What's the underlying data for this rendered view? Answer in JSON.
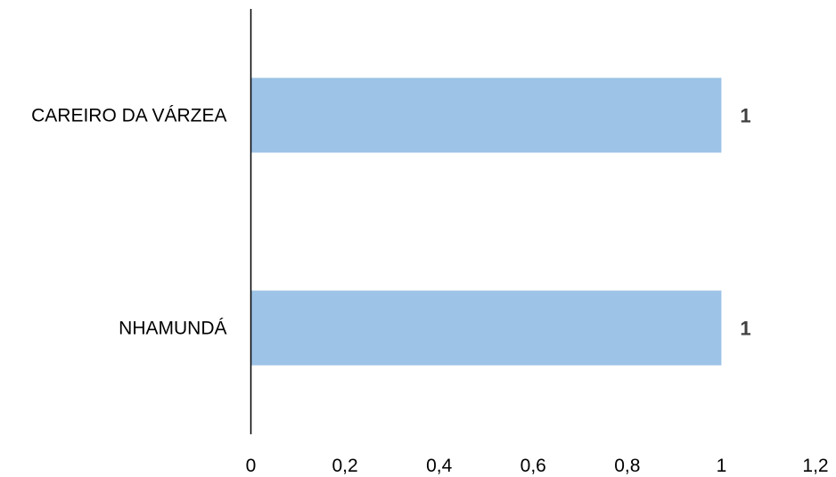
{
  "chart_data": {
    "type": "bar",
    "orientation": "horizontal",
    "categories": [
      "CAREIRO DA VÁRZEA",
      "NHAMUNDÁ"
    ],
    "values": [
      1,
      1
    ],
    "data_labels": [
      "1",
      "1"
    ],
    "xlim": [
      0,
      1.2
    ],
    "x_ticks": [
      "0",
      "0,2",
      "0,4",
      "0,6",
      "0,8",
      "1",
      "1,2"
    ],
    "title": "",
    "xlabel": "",
    "ylabel": "",
    "grid": false,
    "legend": "none",
    "bar_color": "#9DC3E6",
    "axis_color": "#000000",
    "data_label_color": "#404040"
  }
}
